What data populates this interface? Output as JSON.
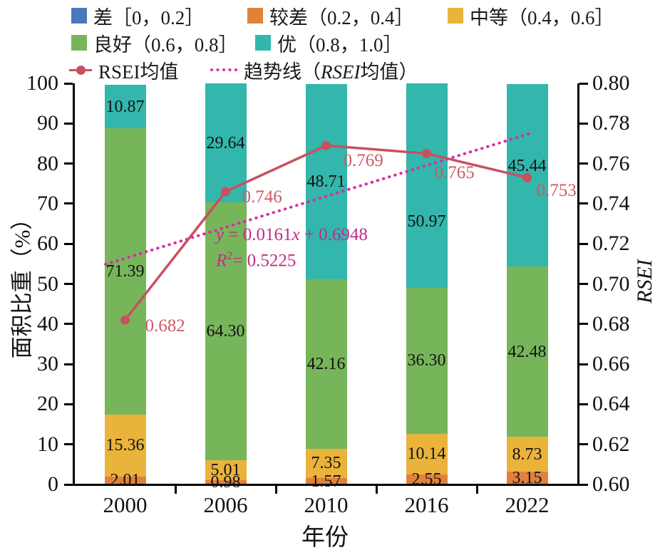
{
  "figure": {
    "background": "#ffffff"
  },
  "legend": {
    "items": [
      {
        "label": "差［0，0.2］",
        "color": "#4a78b9",
        "marker": "square"
      },
      {
        "label": "较差（0.2，0.4］",
        "color": "#e2813e",
        "marker": "square"
      },
      {
        "label": "中等（0.4，0.6］",
        "color": "#eab33c",
        "marker": "square"
      },
      {
        "label": "良好（0.6，0.8］",
        "color": "#77b55a",
        "marker": "square"
      },
      {
        "label": "优（0.8，1.0］",
        "color": "#33b6ac",
        "marker": "square"
      },
      {
        "label": "RSEI均值",
        "color": "#c8515e",
        "marker": "line-dot"
      },
      {
        "label_prefix": "趋势线（",
        "label_italic": "RSEI",
        "label_suffix": "均值）",
        "color": "#dc2aa8",
        "marker": "dotted"
      }
    ]
  },
  "chart_data": {
    "type": "bar",
    "subtype": "stacked-percent-bars-with-line",
    "title": "",
    "grid": false,
    "legend_position": "top-left",
    "categories": [
      "2000",
      "2006",
      "2010",
      "2016",
      "2022"
    ],
    "series": [
      {
        "name": "较差（0.2，0.4］",
        "color": "#e2813e",
        "values": [
          2.01,
          0.98,
          1.57,
          2.55,
          3.15
        ]
      },
      {
        "name": "中等（0.4，0.6］",
        "color": "#eab33c",
        "values": [
          15.36,
          5.01,
          7.35,
          10.14,
          8.73
        ]
      },
      {
        "name": "良好（0.6，0.8］",
        "color": "#77b55a",
        "values": [
          71.39,
          64.3,
          42.16,
          36.3,
          42.48
        ]
      },
      {
        "name": "优（0.8，1.0］",
        "color": "#33b6ac",
        "values": [
          10.87,
          29.64,
          48.71,
          50.97,
          45.44
        ]
      }
    ],
    "line_series": {
      "name": "RSEI均值",
      "color": "#c8515e",
      "label_color": "#cc5b67",
      "values": [
        0.682,
        0.746,
        0.769,
        0.765,
        0.753
      ]
    },
    "trend": {
      "name": "趋势线（RSEI均值）",
      "equation": "y = 0.0161x + 0.6948",
      "r_squared": "R² = 0.5225",
      "color": "#dc2aa8"
    },
    "axes": {
      "left": {
        "label": "面积比重（%）",
        "ticks": [
          0,
          10,
          20,
          30,
          40,
          50,
          60,
          70,
          80,
          90,
          100
        ]
      },
      "right": {
        "label": "RSEI",
        "ticks": [
          0.6,
          0.62,
          0.64,
          0.66,
          0.68,
          0.7,
          0.72,
          0.74,
          0.76,
          0.78,
          0.8
        ]
      },
      "x": {
        "label": "年份"
      }
    }
  },
  "annotation": {
    "eq_y": "y",
    "eq_mid": " = 0.0161",
    "eq_x": "x",
    "eq_tail": " + 0.6948",
    "r2_base": "R",
    "r2_sup": "2",
    "r2_rest": "= 0.5225",
    "color": "#c32b8a"
  }
}
